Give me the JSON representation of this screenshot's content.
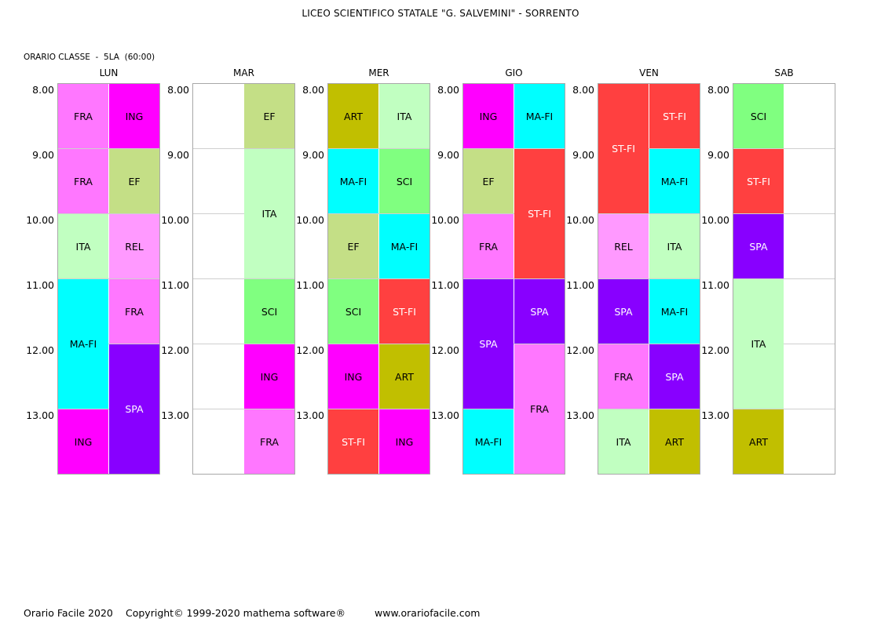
{
  "title": "LICEO SCIENTIFICO STATALE \"G. SALVEMINI\" - SORRENTO",
  "subtitle": "ORARIO CLASSE  -  5LA  (60:00)",
  "times": [
    "8.00",
    "9.00",
    "10.00",
    "11.00",
    "12.00",
    "13.00"
  ],
  "subjects": {
    "FRA": {
      "color": "#ff77ff",
      "text": "#000000"
    },
    "ING": {
      "color": "#ff00ff",
      "text": "#000000"
    },
    "EF": {
      "color": "#c4df86",
      "text": "#000000"
    },
    "ITA": {
      "color": "#c1ffc1",
      "text": "#000000"
    },
    "REL": {
      "color": "#ff99ff",
      "text": "#000000"
    },
    "MA-FI": {
      "color": "#00ffff",
      "text": "#000000"
    },
    "SPA": {
      "color": "#8800ff",
      "text": "#ffffff"
    },
    "SCI": {
      "color": "#80ff80",
      "text": "#000000"
    },
    "ART": {
      "color": "#c1bf00",
      "text": "#000000"
    },
    "ST-FI": {
      "color": "#ff4040",
      "text": "#ffffff"
    }
  },
  "days": [
    {
      "name": "LUN",
      "lessons": [
        {
          "subject": "FRA",
          "col": 0,
          "start": 0,
          "span": 1
        },
        {
          "subject": "ING",
          "col": 1,
          "start": 0,
          "span": 1
        },
        {
          "subject": "FRA",
          "col": 0,
          "start": 1,
          "span": 1
        },
        {
          "subject": "EF",
          "col": 1,
          "start": 1,
          "span": 1
        },
        {
          "subject": "ITA",
          "col": 0,
          "start": 2,
          "span": 1
        },
        {
          "subject": "REL",
          "col": 1,
          "start": 2,
          "span": 1
        },
        {
          "subject": "MA-FI",
          "col": 0,
          "start": 3,
          "span": 2
        },
        {
          "subject": "FRA",
          "col": 1,
          "start": 3,
          "span": 1
        },
        {
          "subject": "SPA",
          "col": 1,
          "start": 4,
          "span": 2
        },
        {
          "subject": "ING",
          "col": 0,
          "start": 5,
          "span": 1
        }
      ]
    },
    {
      "name": "MAR",
      "lessons": [
        {
          "subject": "EF",
          "col": 1,
          "start": 0,
          "span": 1
        },
        {
          "subject": "ITA",
          "col": 1,
          "start": 1,
          "span": 2
        },
        {
          "subject": "SCI",
          "col": 1,
          "start": 3,
          "span": 1
        },
        {
          "subject": "ING",
          "col": 1,
          "start": 4,
          "span": 1
        },
        {
          "subject": "FRA",
          "col": 1,
          "start": 5,
          "span": 1
        }
      ]
    },
    {
      "name": "MER",
      "lessons": [
        {
          "subject": "ART",
          "col": 0,
          "start": 0,
          "span": 1
        },
        {
          "subject": "ITA",
          "col": 1,
          "start": 0,
          "span": 1
        },
        {
          "subject": "MA-FI",
          "col": 0,
          "start": 1,
          "span": 1
        },
        {
          "subject": "SCI",
          "col": 1,
          "start": 1,
          "span": 1
        },
        {
          "subject": "EF",
          "col": 0,
          "start": 2,
          "span": 1
        },
        {
          "subject": "MA-FI",
          "col": 1,
          "start": 2,
          "span": 1
        },
        {
          "subject": "SCI",
          "col": 0,
          "start": 3,
          "span": 1
        },
        {
          "subject": "ST-FI",
          "col": 1,
          "start": 3,
          "span": 1
        },
        {
          "subject": "ING",
          "col": 0,
          "start": 4,
          "span": 1
        },
        {
          "subject": "ART",
          "col": 1,
          "start": 4,
          "span": 1
        },
        {
          "subject": "ST-FI",
          "col": 0,
          "start": 5,
          "span": 1
        },
        {
          "subject": "ING",
          "col": 1,
          "start": 5,
          "span": 1
        }
      ]
    },
    {
      "name": "GIO",
      "lessons": [
        {
          "subject": "ING",
          "col": 0,
          "start": 0,
          "span": 1
        },
        {
          "subject": "MA-FI",
          "col": 1,
          "start": 0,
          "span": 1
        },
        {
          "subject": "EF",
          "col": 0,
          "start": 1,
          "span": 1
        },
        {
          "subject": "ST-FI",
          "col": 1,
          "start": 1,
          "span": 2
        },
        {
          "subject": "FRA",
          "col": 0,
          "start": 2,
          "span": 1
        },
        {
          "subject": "SPA",
          "col": 0,
          "start": 3,
          "span": 2
        },
        {
          "subject": "SPA",
          "col": 1,
          "start": 3,
          "span": 1
        },
        {
          "subject": "FRA",
          "col": 1,
          "start": 4,
          "span": 2
        },
        {
          "subject": "MA-FI",
          "col": 0,
          "start": 5,
          "span": 1
        }
      ]
    },
    {
      "name": "VEN",
      "lessons": [
        {
          "subject": "ST-FI",
          "col": 0,
          "start": 0,
          "span": 2
        },
        {
          "subject": "ST-FI",
          "col": 1,
          "start": 0,
          "span": 1
        },
        {
          "subject": "MA-FI",
          "col": 1,
          "start": 1,
          "span": 1
        },
        {
          "subject": "REL",
          "col": 0,
          "start": 2,
          "span": 1
        },
        {
          "subject": "ITA",
          "col": 1,
          "start": 2,
          "span": 1
        },
        {
          "subject": "SPA",
          "col": 0,
          "start": 3,
          "span": 1
        },
        {
          "subject": "MA-FI",
          "col": 1,
          "start": 3,
          "span": 1
        },
        {
          "subject": "FRA",
          "col": 0,
          "start": 4,
          "span": 1
        },
        {
          "subject": "SPA",
          "col": 1,
          "start": 4,
          "span": 1
        },
        {
          "subject": "ITA",
          "col": 0,
          "start": 5,
          "span": 1
        },
        {
          "subject": "ART",
          "col": 1,
          "start": 5,
          "span": 1
        }
      ]
    },
    {
      "name": "SAB",
      "lessons": [
        {
          "subject": "SCI",
          "col": 0,
          "start": 0,
          "span": 1
        },
        {
          "subject": "ST-FI",
          "col": 0,
          "start": 1,
          "span": 1
        },
        {
          "subject": "SPA",
          "col": 0,
          "start": 2,
          "span": 1
        },
        {
          "subject": "ITA",
          "col": 0,
          "start": 3,
          "span": 2
        },
        {
          "subject": "ART",
          "col": 0,
          "start": 5,
          "span": 1
        }
      ]
    }
  ],
  "footer": {
    "product": "Orario Facile 2020",
    "copyright": "Copyright© 1999-2020 mathema software®",
    "website": "www.orariofacile.com"
  }
}
